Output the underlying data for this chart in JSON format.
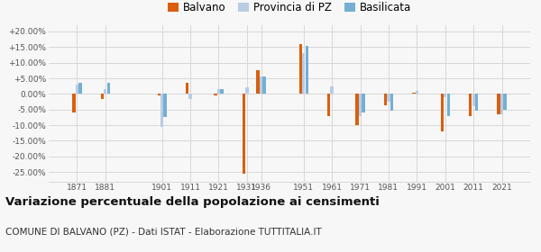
{
  "years": [
    1871,
    1881,
    1901,
    1911,
    1921,
    1931,
    1936,
    1951,
    1961,
    1971,
    1981,
    1991,
    2001,
    2011,
    2021
  ],
  "balvano": [
    -6.0,
    -1.5,
    -0.5,
    3.5,
    -0.5,
    -25.5,
    7.5,
    16.0,
    -7.0,
    -10.0,
    -3.5,
    0.5,
    -12.0,
    -7.0,
    -6.5
  ],
  "provincia": [
    3.0,
    1.5,
    -10.5,
    -1.5,
    1.5,
    2.0,
    5.5,
    13.0,
    2.5,
    -7.0,
    -2.5,
    1.0,
    -1.0,
    -4.0,
    -6.5
  ],
  "basilicata": [
    3.5,
    3.5,
    -7.5,
    0.0,
    1.5,
    0.0,
    5.5,
    15.5,
    0.0,
    -6.0,
    -5.5,
    0.0,
    -7.0,
    -5.5,
    -5.0
  ],
  "color_balvano": "#d95f0e",
  "color_provincia": "#b8cce4",
  "color_basilicata": "#74afd3",
  "title": "Variazione percentuale della popolazione ai censimenti",
  "subtitle": "COMUNE DI BALVANO (PZ) - Dati ISTAT - Elaborazione TUTTITALIA.IT",
  "ylabel_ticks": [
    -25.0,
    -20.0,
    -15.0,
    -10.0,
    -5.0,
    0.0,
    5.0,
    10.0,
    15.0,
    20.0
  ],
  "ylim": [
    -28,
    22
  ],
  "xlim": [
    1861,
    2031
  ],
  "legend_labels": [
    "Balvano",
    "Provincia di PZ",
    "Basilicata"
  ],
  "background_color": "#f7f7f7",
  "grid_color": "#d8d8d8",
  "title_fontsize": 9.5,
  "subtitle_fontsize": 7.5,
  "tick_fontsize": 6.5,
  "legend_fontsize": 8.5
}
